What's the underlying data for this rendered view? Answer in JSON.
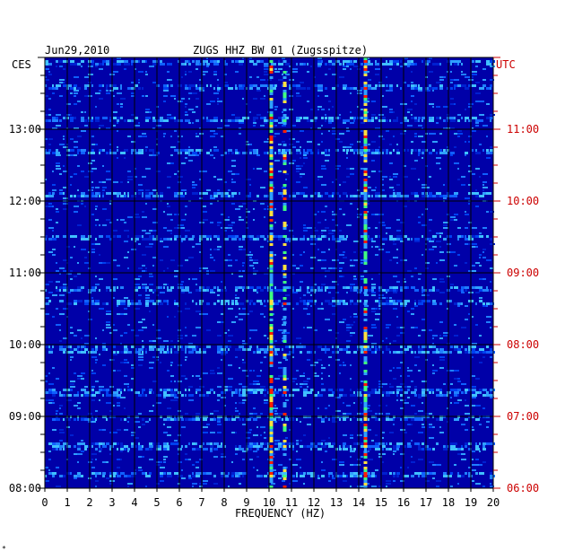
{
  "header": {
    "date": "Jun29,2010",
    "station": "ZUGS HHZ BW 01 (Zugsspitze)",
    "left_zone": "CES",
    "right_zone": "UTC"
  },
  "corner_mark": "*",
  "colors": {
    "background": "#0000a8",
    "grid": "#000000",
    "left_axis_text": "#000000",
    "right_axis_text": "#cc0000",
    "high_energy": "#ff2000",
    "mid_energy": "#40ff80",
    "low_energy": "#2060ff"
  },
  "chart_data": {
    "type": "heatmap",
    "xlabel": "FREQUENCY (HZ)",
    "xlim": [
      0,
      20
    ],
    "x_ticks": [
      "0",
      "1",
      "2",
      "3",
      "4",
      "5",
      "6",
      "7",
      "8",
      "9",
      "10",
      "11",
      "12",
      "13",
      "14",
      "15",
      "16",
      "17",
      "18",
      "19",
      "20"
    ],
    "y_left_label": "CES",
    "y_right_label": "UTC",
    "y_left_ticks": [
      "08:00",
      "09:00",
      "10:00",
      "11:00",
      "12:00",
      "13:00"
    ],
    "y_right_ticks": [
      "06:00",
      "07:00",
      "08:00",
      "09:00",
      "10:00",
      "11:00"
    ],
    "y_range_local_hours": [
      8.0,
      14.0
    ],
    "grid": true,
    "persistent_lines_hz": [
      {
        "freq": 10.1,
        "intensity": 0.85
      },
      {
        "freq": 10.7,
        "intensity": 0.55
      },
      {
        "freq": 14.3,
        "intensity": 0.75
      }
    ],
    "strong_time_bands_local_hours": [
      13.95,
      13.6,
      13.15,
      12.7,
      12.1,
      11.5,
      10.8,
      10.6,
      9.95,
      9.35,
      9.0,
      8.6,
      8.2
    ]
  }
}
